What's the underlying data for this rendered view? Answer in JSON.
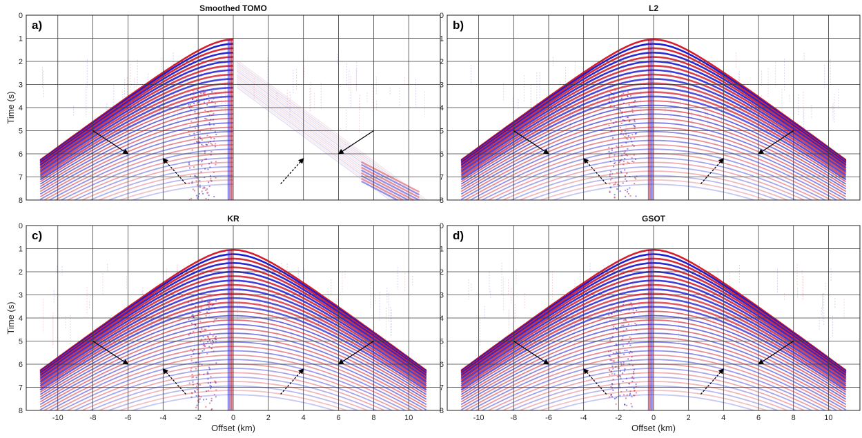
{
  "chart_data": [
    {
      "type": "heatmap",
      "panel_label": "a)",
      "title": "Smoothed TOMO",
      "xlabel": "",
      "ylabel": "Time (s)",
      "xlim": [
        -11.8,
        11.8
      ],
      "ylim": [
        0,
        8
      ],
      "x_ticks": [
        -10,
        -8,
        -6,
        -4,
        -2,
        0,
        2,
        4,
        6,
        8,
        10
      ],
      "y_ticks": [
        0,
        1,
        2,
        3,
        4,
        5,
        6,
        7,
        8
      ],
      "show_x_tick_labels": false,
      "grid": true,
      "wavefield": {
        "apex_time_s": 1.05,
        "cone_halfwidth_km": 11.5,
        "left_extent_km": -11,
        "right_extent_km": 0,
        "right_faint_tail": true
      },
      "annotations": [
        {
          "style": "solid",
          "from": [
            -8.0,
            5.0
          ],
          "to": [
            -6.0,
            6.0
          ]
        },
        {
          "style": "dashed",
          "from": [
            -2.7,
            7.3
          ],
          "to": [
            -4.0,
            6.2
          ]
        },
        {
          "style": "dashed",
          "from": [
            2.7,
            7.3
          ],
          "to": [
            4.0,
            6.2
          ]
        },
        {
          "style": "solid",
          "from": [
            8.0,
            5.0
          ],
          "to": [
            6.0,
            6.0
          ]
        }
      ]
    },
    {
      "type": "heatmap",
      "panel_label": "b)",
      "title": "L2",
      "xlabel": "",
      "ylabel": "",
      "xlim": [
        -11.8,
        11.8
      ],
      "ylim": [
        0,
        8
      ],
      "x_ticks": [
        -10,
        -8,
        -6,
        -4,
        -2,
        0,
        2,
        4,
        6,
        8,
        10
      ],
      "y_ticks": [
        0,
        1,
        2,
        3,
        4,
        5,
        6,
        7,
        8
      ],
      "show_x_tick_labels": false,
      "grid": true,
      "wavefield": {
        "apex_time_s": 1.05,
        "cone_halfwidth_km": 11.5,
        "left_extent_km": -11,
        "right_extent_km": 11,
        "right_faint_tail": false
      },
      "annotations": [
        {
          "style": "solid",
          "from": [
            -8.0,
            5.0
          ],
          "to": [
            -6.0,
            6.0
          ]
        },
        {
          "style": "dashed",
          "from": [
            -2.7,
            7.3
          ],
          "to": [
            -4.0,
            6.2
          ]
        },
        {
          "style": "dashed",
          "from": [
            2.7,
            7.3
          ],
          "to": [
            4.0,
            6.2
          ]
        },
        {
          "style": "solid",
          "from": [
            8.0,
            5.0
          ],
          "to": [
            6.0,
            6.0
          ]
        }
      ]
    },
    {
      "type": "heatmap",
      "panel_label": "c)",
      "title": "KR",
      "xlabel": "Offset (km)",
      "ylabel": "Time (s)",
      "xlim": [
        -11.8,
        11.8
      ],
      "ylim": [
        0,
        8
      ],
      "x_ticks": [
        -10,
        -8,
        -6,
        -4,
        -2,
        0,
        2,
        4,
        6,
        8,
        10
      ],
      "y_ticks": [
        0,
        1,
        2,
        3,
        4,
        5,
        6,
        7,
        8
      ],
      "show_x_tick_labels": true,
      "grid": true,
      "wavefield": {
        "apex_time_s": 1.05,
        "cone_halfwidth_km": 11.5,
        "left_extent_km": -11,
        "right_extent_km": 11,
        "right_faint_tail": false
      },
      "annotations": [
        {
          "style": "solid",
          "from": [
            -8.0,
            5.0
          ],
          "to": [
            -6.0,
            6.0
          ]
        },
        {
          "style": "dashed",
          "from": [
            -2.7,
            7.3
          ],
          "to": [
            -4.0,
            6.2
          ]
        },
        {
          "style": "dashed",
          "from": [
            2.7,
            7.3
          ],
          "to": [
            4.0,
            6.2
          ]
        },
        {
          "style": "solid",
          "from": [
            8.0,
            5.0
          ],
          "to": [
            6.0,
            6.0
          ]
        }
      ]
    },
    {
      "type": "heatmap",
      "panel_label": "d)",
      "title": "GSOT",
      "xlabel": "Offset (km)",
      "ylabel": "",
      "xlim": [
        -11.8,
        11.8
      ],
      "ylim": [
        0,
        8
      ],
      "x_ticks": [
        -10,
        -8,
        -6,
        -4,
        -2,
        0,
        2,
        4,
        6,
        8,
        10
      ],
      "y_ticks": [
        0,
        1,
        2,
        3,
        4,
        5,
        6,
        7,
        8
      ],
      "show_x_tick_labels": true,
      "grid": true,
      "wavefield": {
        "apex_time_s": 1.05,
        "cone_halfwidth_km": 11.5,
        "left_extent_km": -11,
        "right_extent_km": 11,
        "right_faint_tail": false
      },
      "annotations": [
        {
          "style": "solid",
          "from": [
            -8.0,
            5.0
          ],
          "to": [
            -6.0,
            6.0
          ]
        },
        {
          "style": "dashed",
          "from": [
            -2.7,
            7.3
          ],
          "to": [
            -4.0,
            6.2
          ]
        },
        {
          "style": "dashed",
          "from": [
            2.7,
            7.3
          ],
          "to": [
            4.0,
            6.2
          ]
        },
        {
          "style": "solid",
          "from": [
            8.0,
            5.0
          ],
          "to": [
            6.0,
            6.0
          ]
        }
      ]
    }
  ],
  "colors": {
    "positive": "#1a1ad0",
    "negative": "#d41e2c",
    "background": "#ffffff",
    "grid": "#3a3a3a",
    "frame": "#222222",
    "arrow": "#000000"
  }
}
